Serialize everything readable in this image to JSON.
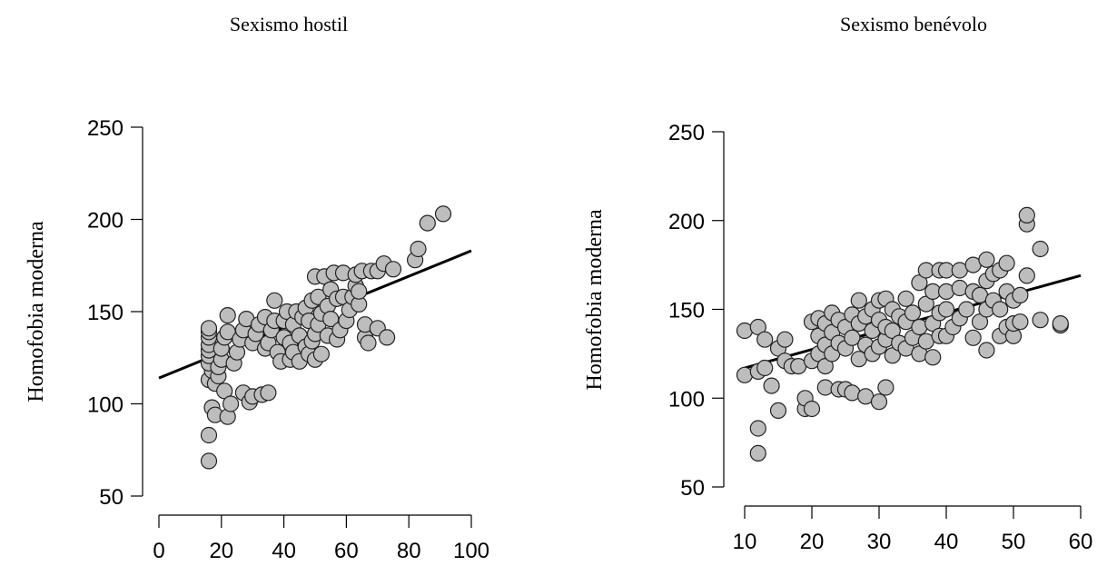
{
  "chart_data": [
    {
      "type": "scatter",
      "title": "Sexismo hostil",
      "xlabel": "",
      "ylabel": "Homofobia moderna",
      "xlim": [
        0,
        100
      ],
      "ylim": [
        50,
        250
      ],
      "xticks": [
        0,
        20,
        40,
        60,
        80,
        100
      ],
      "yticks": [
        50,
        100,
        150,
        200,
        250
      ],
      "xtick_labels": [
        "0",
        "20",
        "40",
        "60",
        "80",
        "100"
      ],
      "ytick_labels": [
        "50",
        "100",
        "150",
        "200",
        "250"
      ],
      "fit_line": {
        "x": [
          0,
          100
        ],
        "y": [
          114,
          183
        ]
      },
      "points": [
        [
          16,
          69
        ],
        [
          16,
          83
        ],
        [
          17,
          98
        ],
        [
          16,
          113
        ],
        [
          17,
          118
        ],
        [
          16,
          122
        ],
        [
          16,
          126
        ],
        [
          16,
          129
        ],
        [
          16,
          132
        ],
        [
          16,
          136
        ],
        [
          16,
          139
        ],
        [
          16,
          141
        ],
        [
          18,
          94
        ],
        [
          18,
          111
        ],
        [
          19,
          115
        ],
        [
          19,
          120
        ],
        [
          20,
          124
        ],
        [
          20,
          130
        ],
        [
          21,
          136
        ],
        [
          22,
          139
        ],
        [
          22,
          148
        ],
        [
          21,
          107
        ],
        [
          22,
          93
        ],
        [
          23,
          100
        ],
        [
          24,
          122
        ],
        [
          25,
          128
        ],
        [
          26,
          135
        ],
        [
          27,
          140
        ],
        [
          28,
          146
        ],
        [
          27,
          106
        ],
        [
          29,
          101
        ],
        [
          30,
          104
        ],
        [
          30,
          133
        ],
        [
          31,
          138
        ],
        [
          32,
          143
        ],
        [
          33,
          105
        ],
        [
          34,
          130
        ],
        [
          34,
          147
        ],
        [
          35,
          106
        ],
        [
          35,
          133
        ],
        [
          36,
          140
        ],
        [
          37,
          145
        ],
        [
          37,
          156
        ],
        [
          38,
          128
        ],
        [
          39,
          123
        ],
        [
          40,
          136
        ],
        [
          40,
          145
        ],
        [
          41,
          150
        ],
        [
          42,
          124
        ],
        [
          42,
          133
        ],
        [
          43,
          128
        ],
        [
          43,
          143
        ],
        [
          44,
          150
        ],
        [
          45,
          123
        ],
        [
          45,
          137
        ],
        [
          46,
          147
        ],
        [
          47,
          152
        ],
        [
          47,
          131
        ],
        [
          48,
          127
        ],
        [
          48,
          145
        ],
        [
          49,
          134
        ],
        [
          49,
          156
        ],
        [
          50,
          124
        ],
        [
          50,
          138
        ],
        [
          50,
          169
        ],
        [
          51,
          143
        ],
        [
          51,
          158
        ],
        [
          52,
          127
        ],
        [
          52,
          149
        ],
        [
          53,
          169
        ],
        [
          54,
          137
        ],
        [
          54,
          153
        ],
        [
          55,
          146
        ],
        [
          55,
          162
        ],
        [
          56,
          171
        ],
        [
          57,
          135
        ],
        [
          57,
          157
        ],
        [
          58,
          140
        ],
        [
          59,
          158
        ],
        [
          59,
          171
        ],
        [
          60,
          145
        ],
        [
          61,
          151
        ],
        [
          62,
          158
        ],
        [
          63,
          164
        ],
        [
          63,
          170
        ],
        [
          64,
          154
        ],
        [
          64,
          161
        ],
        [
          65,
          172
        ],
        [
          66,
          136
        ],
        [
          66,
          143
        ],
        [
          67,
          133
        ],
        [
          68,
          172
        ],
        [
          70,
          141
        ],
        [
          70,
          172
        ],
        [
          72,
          176
        ],
        [
          73,
          136
        ],
        [
          75,
          173
        ],
        [
          82,
          178
        ],
        [
          83,
          184
        ],
        [
          86,
          198
        ],
        [
          91,
          203
        ]
      ]
    },
    {
      "type": "scatter",
      "title": "Sexismo benévolo",
      "xlabel": "",
      "ylabel": "Homofobia moderna",
      "xlim": [
        10,
        60
      ],
      "ylim": [
        50,
        250
      ],
      "xticks": [
        10,
        20,
        30,
        40,
        50,
        60
      ],
      "yticks": [
        50,
        100,
        150,
        200,
        250
      ],
      "xtick_labels": [
        "10",
        "20",
        "30",
        "40",
        "50",
        "60"
      ],
      "ytick_labels": [
        "50",
        "100",
        "150",
        "200",
        "250"
      ],
      "fit_line": {
        "x": [
          10,
          60
        ],
        "y": [
          117,
          169
        ]
      },
      "points": [
        [
          10,
          113
        ],
        [
          10,
          138
        ],
        [
          12,
          69
        ],
        [
          12,
          83
        ],
        [
          12,
          115
        ],
        [
          12,
          140
        ],
        [
          13,
          133
        ],
        [
          13,
          117
        ],
        [
          14,
          107
        ],
        [
          15,
          93
        ],
        [
          15,
          128
        ],
        [
          16,
          133
        ],
        [
          16,
          121
        ],
        [
          17,
          118
        ],
        [
          18,
          118
        ],
        [
          19,
          94
        ],
        [
          19,
          100
        ],
        [
          20,
          94
        ],
        [
          20,
          121
        ],
        [
          20,
          143
        ],
        [
          21,
          125
        ],
        [
          21,
          135
        ],
        [
          21,
          145
        ],
        [
          22,
          106
        ],
        [
          22,
          118
        ],
        [
          22,
          130
        ],
        [
          22,
          142
        ],
        [
          23,
          125
        ],
        [
          23,
          137
        ],
        [
          23,
          148
        ],
        [
          24,
          105
        ],
        [
          24,
          131
        ],
        [
          24,
          144
        ],
        [
          25,
          105
        ],
        [
          25,
          128
        ],
        [
          25,
          140
        ],
        [
          26,
          103
        ],
        [
          26,
          134
        ],
        [
          26,
          147
        ],
        [
          27,
          122
        ],
        [
          27,
          155
        ],
        [
          27,
          142
        ],
        [
          28,
          101
        ],
        [
          28,
          130
        ],
        [
          28,
          146
        ],
        [
          29,
          125
        ],
        [
          29,
          138
        ],
        [
          29,
          150
        ],
        [
          30,
          98
        ],
        [
          30,
          129
        ],
        [
          30,
          144
        ],
        [
          30,
          155
        ],
        [
          31,
          106
        ],
        [
          31,
          133
        ],
        [
          31,
          140
        ],
        [
          31,
          156
        ],
        [
          32,
          124
        ],
        [
          32,
          138
        ],
        [
          32,
          150
        ],
        [
          33,
          131
        ],
        [
          33,
          146
        ],
        [
          34,
          128
        ],
        [
          34,
          143
        ],
        [
          34,
          156
        ],
        [
          35,
          134
        ],
        [
          35,
          148
        ],
        [
          36,
          125
        ],
        [
          36,
          140
        ],
        [
          36,
          165
        ],
        [
          37,
          132
        ],
        [
          37,
          153
        ],
        [
          37,
          172
        ],
        [
          38,
          123
        ],
        [
          38,
          142
        ],
        [
          38,
          160
        ],
        [
          39,
          135
        ],
        [
          39,
          148
        ],
        [
          39,
          172
        ],
        [
          40,
          135
        ],
        [
          40,
          150
        ],
        [
          40,
          160
        ],
        [
          40,
          172
        ],
        [
          41,
          140
        ],
        [
          42,
          145
        ],
        [
          42,
          162
        ],
        [
          42,
          172
        ],
        [
          43,
          150
        ],
        [
          44,
          134
        ],
        [
          44,
          160
        ],
        [
          44,
          175
        ],
        [
          45,
          143
        ],
        [
          45,
          158
        ],
        [
          46,
          127
        ],
        [
          46,
          150
        ],
        [
          46,
          166
        ],
        [
          46,
          178
        ],
        [
          47,
          155
        ],
        [
          47,
          170
        ],
        [
          48,
          135
        ],
        [
          48,
          150
        ],
        [
          48,
          172
        ],
        [
          49,
          140
        ],
        [
          49,
          160
        ],
        [
          49,
          176
        ],
        [
          50,
          135
        ],
        [
          50,
          142
        ],
        [
          50,
          155
        ],
        [
          51,
          143
        ],
        [
          51,
          158
        ],
        [
          52,
          169
        ],
        [
          52,
          198
        ],
        [
          52,
          203
        ],
        [
          54,
          144
        ],
        [
          54,
          184
        ],
        [
          57,
          141
        ],
        [
          57,
          142
        ]
      ]
    }
  ]
}
